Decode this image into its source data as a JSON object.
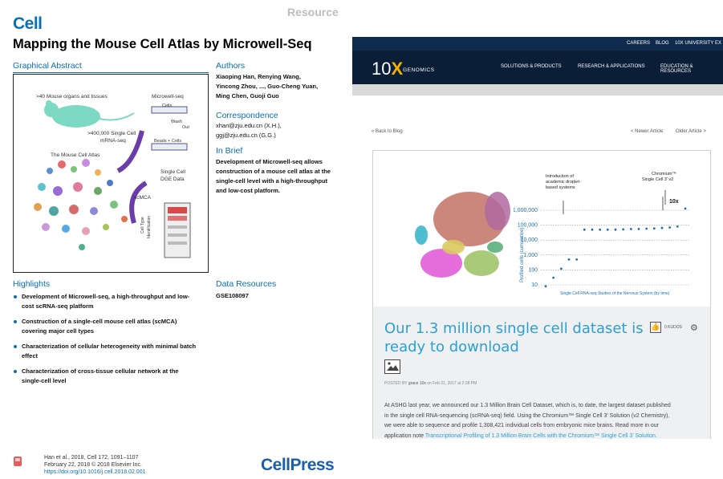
{
  "paper": {
    "journal_logo": "Cell",
    "article_type": "Resource",
    "title": "Mapping the Mouse Cell Atlas by Microwell-Seq",
    "graphical_abstract": {
      "heading": "Graphical Abstract",
      "labels": {
        "organs": ">40 Mouse organs and tissues",
        "microwell": "Microwell-seq",
        "cells": "Cells",
        "wash": "Wash",
        "out": "Out",
        "beads": "Beads + Cells",
        "single_cell_1": ">400,000 Single Cell",
        "single_cell_2": "mRNA-seq",
        "atlas": "The Mouse Cell Atlas",
        "dge_1": "Single Cell",
        "dge_2": "DGE Data",
        "scmca": "scMCA",
        "cell_type_1": "Cell Type",
        "cell_type_2": "Identification"
      }
    },
    "authors": {
      "heading": "Authors",
      "lines": [
        "Xiaoping Han, Renying Wang,",
        "Yincong Zhou, ..., Guo-Cheng Yuan,",
        "Ming Chen, Guoji Guo"
      ]
    },
    "correspondence": {
      "heading": "Correspondence",
      "lines": [
        "xhan@zju.edu.cn (X.H.),",
        "ggj@zju.edu.cn (G.G.)"
      ]
    },
    "in_brief": {
      "heading": "In Brief",
      "lines": [
        "Development of Microwell-seq allows",
        "construction of a mouse cell atlas at the",
        "single-cell level with a high-throughput",
        "and low-cost platform."
      ]
    },
    "highlights": {
      "heading": "Highlights",
      "items": [
        [
          "Development of Microwell-seq, a high-throughput and low-",
          "cost scRNA-seq platform"
        ],
        [
          "Construction of a single-cell mouse cell atlas (scMCA)",
          "covering major cell types"
        ],
        [
          "Characterization of cellular heterogeneity with minimal batch",
          "effect"
        ],
        [
          "Characterization of cross-tissue cellular network at the",
          "single-cell level"
        ]
      ]
    },
    "data_resources": {
      "heading": "Data Resources",
      "value": "GSE108097"
    },
    "citation": {
      "line1": "Han et al., 2018, Cell 172, 1091–1107",
      "line2": "February 22, 2018 © 2018 Elsevier Inc.",
      "doi": "https://doi.org/10.1016/j.cell.2018.02.001"
    },
    "publisher_logo": "CellPress"
  },
  "blog": {
    "top_links": [
      "CAREERS",
      "BLOG",
      "10X UNIVERSITY",
      "EX"
    ],
    "logo": {
      "num": "10",
      "x": "X",
      "word": "GENOMICS"
    },
    "nav": [
      "SOLUTIONS & PRODUCTS",
      "RESEARCH & APPLICATIONS",
      "EDUCATION & RESOURCES"
    ],
    "back": "« Back to Blog",
    "newer": "< Newer Article",
    "older": "Older Article >",
    "post": {
      "title": "Our 1.3 million single cell dataset is ready to download",
      "kudos": "0 KUDOS",
      "posted_prefix": "POSTED BY",
      "posted_user": "grace 10x",
      "posted_suffix": "on Feb 21, 2017 at 2:28 PM",
      "body_lines": [
        "At ASHG last year, we announced our 1.3 Million Brain Cell Dataset, which is, to date, the largest dataset published",
        "in the single cell RNA-sequencing (scRNA-seq) field. Using the Chromium™ Single Cell 3' Solution (v2 Chemistry),",
        "we were able to sequence and profile 1,308,421 individual cells from embryonic mice brains.  Read more in our"
      ],
      "body_last_prefix": "application note ",
      "body_link": "Transcriptional Profiling of 1.3 Million Brain Cells with the Chromium™ Single Cell 3' Solution."
    },
    "icons": {
      "kudos": "thumbs-up-icon",
      "settings": "gear-icon",
      "image": "image-icon"
    }
  },
  "chart_data": {
    "type": "scatter",
    "ylabel": "Profiled cells (cumulative)",
    "xlabel": "Single Cell RNA-seq Studies of the Nervous System (by time)",
    "yscale": "log",
    "yticks": [
      "10",
      "100",
      "1,000",
      "10,000",
      "100,000",
      "1,000,000"
    ],
    "values": [
      8,
      30,
      120,
      500,
      500,
      50000,
      50000,
      50000,
      50000,
      50000,
      52000,
      55000,
      55000,
      58000,
      60000,
      65000,
      70000,
      80000,
      1300000
    ],
    "annotations": [
      {
        "text_lines": [
          "Introduction of",
          "academic droplet-",
          "based systems"
        ]
      },
      {
        "text_lines": [
          "Chromium™",
          "Single Cell 3' v2"
        ]
      },
      {
        "text_lines": [
          "10x"
        ]
      }
    ]
  }
}
